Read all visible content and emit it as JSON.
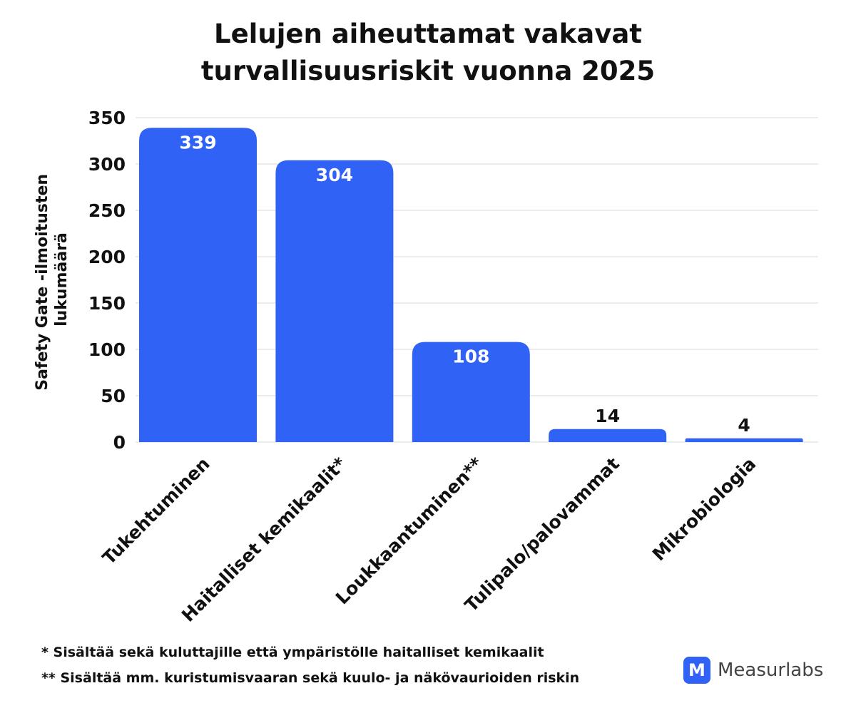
{
  "chart_data": {
    "type": "bar",
    "title_lines": [
      "Lelujen aiheuttamat vakavat",
      "turvallisuusriskit vuonna 2025"
    ],
    "ylabel_lines": [
      "Safety Gate -ilmoitusten",
      "lukumäärä"
    ],
    "xlabel": "",
    "categories": [
      "Tukehtuminen",
      "Haitalliset kemikaalit*",
      "Loukkaantuminen**",
      "Tulipalo/palovammat",
      "Mikrobiologia"
    ],
    "values": [
      339,
      304,
      108,
      14,
      4
    ],
    "data_labels": [
      "339",
      "304",
      "108",
      "14",
      "4"
    ],
    "yticks": [
      "0",
      "50",
      "100",
      "150",
      "200",
      "250",
      "300",
      "350"
    ],
    "ylim": [
      0,
      350
    ],
    "grid": true,
    "bar_color": "#2f62f5",
    "gridline_color": "#d9d9d9",
    "label_inside_color": "#ffffff",
    "label_outside_color": "#111111"
  },
  "footnotes": [
    "* Sisältää sekä kuluttajille että ympäristölle haitalliset kemikaalit",
    "** Sisältää mm. kuristumisvaaran sekä kuulo- ja näkövaurioiden riskin"
  ],
  "brand": {
    "logo_letter": "M",
    "name": "Measurlabs",
    "color": "#2f62f5"
  }
}
